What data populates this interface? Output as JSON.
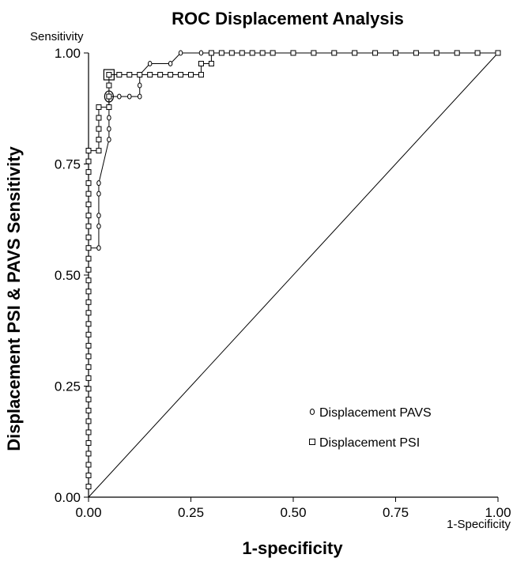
{
  "chart_data": {
    "type": "line",
    "title": "ROC Displacement Analysis",
    "xlabel": "1-specificity",
    "ylabel": "Displacement PSI & PAVS Sensitivity",
    "x_axis_caption": "1-Specificity",
    "y_axis_caption": "Sensitivity",
    "xlim": [
      0,
      1
    ],
    "ylim": [
      0,
      1
    ],
    "x_ticks": [
      "0.00",
      "0.25",
      "0.50",
      "0.75",
      "1.00"
    ],
    "y_ticks": [
      "0.00",
      "0.25",
      "0.50",
      "0.75",
      "1.00"
    ],
    "grid": false,
    "legend_position": "bottom-right",
    "reference_line": {
      "x": [
        0,
        1
      ],
      "y": [
        0,
        1
      ]
    },
    "series": [
      {
        "name": "Displacement PAVS",
        "marker": "circle",
        "color": "#000000",
        "x": [
          0,
          0,
          0,
          0,
          0,
          0,
          0,
          0,
          0,
          0,
          0,
          0,
          0,
          0,
          0,
          0,
          0,
          0,
          0,
          0,
          0,
          0,
          0,
          0,
          0.025,
          0.025,
          0.025,
          0.025,
          0.025,
          0.05,
          0.05,
          0.05,
          0.05,
          0.05,
          0.075,
          0.1,
          0.125,
          0.125,
          0.125,
          0.15,
          0.2,
          0.225,
          0.275,
          0.3,
          0.325,
          0.35,
          0.375,
          0.4,
          0.425,
          0.45,
          0.5,
          0.55,
          0.6,
          0.65,
          0.7,
          0.75,
          0.8,
          0.85,
          0.9,
          0.95,
          1.0
        ],
        "y": [
          0.024,
          0.049,
          0.073,
          0.098,
          0.122,
          0.146,
          0.171,
          0.195,
          0.22,
          0.244,
          0.268,
          0.293,
          0.317,
          0.341,
          0.366,
          0.39,
          0.415,
          0.439,
          0.463,
          0.488,
          0.512,
          0.537,
          0.561,
          0.561,
          0.561,
          0.61,
          0.634,
          0.683,
          0.707,
          0.805,
          0.829,
          0.854,
          0.878,
          0.902,
          0.902,
          0.902,
          0.902,
          0.927,
          0.951,
          0.976,
          0.976,
          1.0,
          1.0,
          1.0,
          1.0,
          1.0,
          1.0,
          1.0,
          1.0,
          1.0,
          1.0,
          1.0,
          1.0,
          1.0,
          1.0,
          1.0,
          1.0,
          1.0,
          1.0,
          1.0,
          1.0
        ]
      },
      {
        "name": "Displacement PSI",
        "marker": "square",
        "color": "#000000",
        "x": [
          0,
          0,
          0,
          0,
          0,
          0,
          0,
          0,
          0,
          0,
          0,
          0,
          0,
          0,
          0,
          0,
          0,
          0,
          0,
          0,
          0,
          0,
          0,
          0,
          0,
          0,
          0,
          0,
          0,
          0,
          0,
          0,
          0,
          0.025,
          0.025,
          0.025,
          0.025,
          0.025,
          0.05,
          0.05,
          0.05,
          0.05,
          0.075,
          0.1,
          0.125,
          0.15,
          0.175,
          0.2,
          0.225,
          0.25,
          0.275,
          0.275,
          0.3,
          0.3,
          0.325,
          0.35,
          0.375,
          0.4,
          0.425,
          0.45,
          0.5,
          0.55,
          0.6,
          0.65,
          0.7,
          0.75,
          0.8,
          0.85,
          0.9,
          0.95,
          1.0
        ],
        "y": [
          0.024,
          0.049,
          0.073,
          0.098,
          0.122,
          0.146,
          0.171,
          0.195,
          0.22,
          0.244,
          0.268,
          0.293,
          0.317,
          0.341,
          0.366,
          0.39,
          0.415,
          0.439,
          0.463,
          0.488,
          0.512,
          0.537,
          0.561,
          0.585,
          0.61,
          0.634,
          0.659,
          0.683,
          0.707,
          0.732,
          0.756,
          0.78,
          0.78,
          0.78,
          0.805,
          0.829,
          0.854,
          0.878,
          0.878,
          0.902,
          0.927,
          0.951,
          0.951,
          0.951,
          0.951,
          0.951,
          0.951,
          0.951,
          0.951,
          0.951,
          0.951,
          0.976,
          0.976,
          1.0,
          1.0,
          1.0,
          1.0,
          1.0,
          1.0,
          1.0,
          1.0,
          1.0,
          1.0,
          1.0,
          1.0,
          1.0,
          1.0,
          1.0,
          1.0,
          1.0,
          1.0
        ]
      }
    ],
    "highlighted_points": [
      {
        "series": "Displacement PAVS",
        "marker": "circle",
        "x": 0.05,
        "y": 0.902
      },
      {
        "series": "Displacement PSI",
        "marker": "square",
        "x": 0.05,
        "y": 0.951
      }
    ]
  }
}
